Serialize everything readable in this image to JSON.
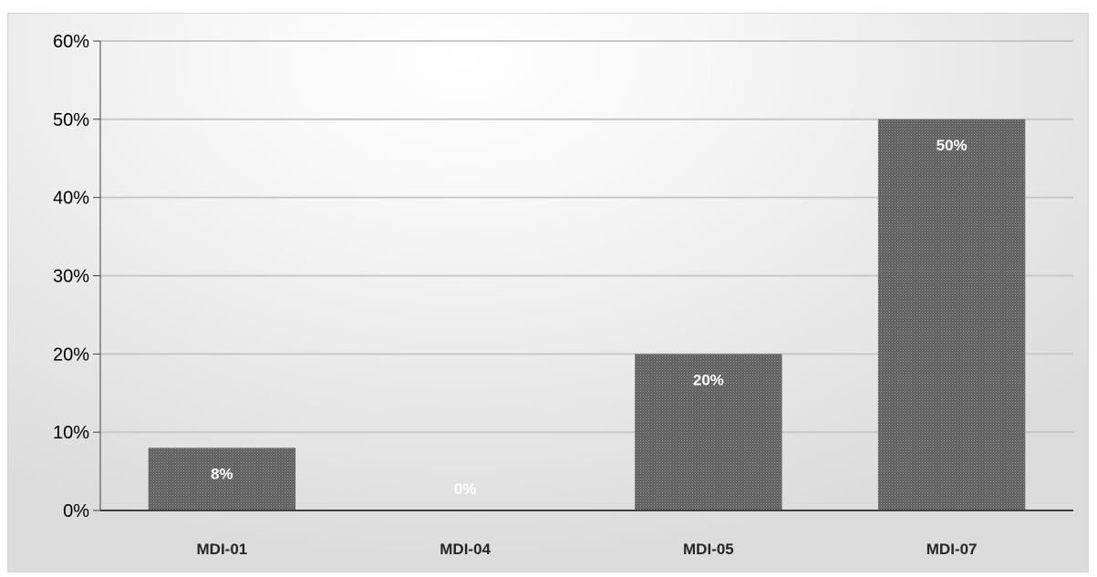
{
  "chart_data": {
    "type": "bar",
    "categories": [
      "MDI-01",
      "MDI-04",
      "MDI-05",
      "MDI-07"
    ],
    "values": [
      0.08,
      0.0,
      0.2,
      0.5
    ],
    "data_labels": [
      "8%",
      "0%",
      "20%",
      "50%"
    ],
    "title": "",
    "xlabel": "",
    "ylabel": "",
    "ylim": [
      0,
      0.6
    ],
    "yticks": [
      0,
      0.1,
      0.2,
      0.3,
      0.4,
      0.5,
      0.6
    ],
    "ytick_labels": [
      "0%",
      "10%",
      "20%",
      "30%",
      "40%",
      "50%",
      "60%"
    ],
    "grid": true,
    "legend": "none",
    "bar_color": "#6f6f6f",
    "grid_color": "#c8c8c8",
    "axis_color": "#404040"
  }
}
